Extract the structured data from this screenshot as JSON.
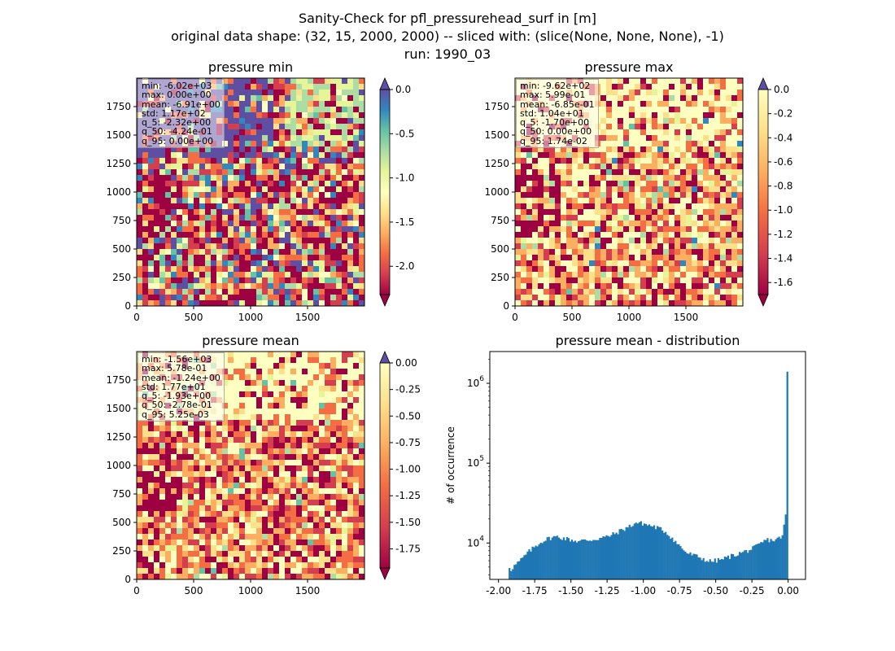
{
  "figure": {
    "title_lines": [
      "Sanity-Check for pfl_pressurehead_surf in [m]",
      "original data shape: (32, 15, 2000, 2000) -- sliced with: (slice(None, None, None), -1)",
      "run: 1990_03"
    ]
  },
  "chart_data": [
    {
      "type": "heatmap",
      "title": "pressure min",
      "xlim": [
        0,
        2000
      ],
      "ylim": [
        0,
        2000
      ],
      "xticks": [
        0,
        500,
        1000,
        1500
      ],
      "yticks": [
        0,
        250,
        500,
        750,
        1000,
        1250,
        1500,
        1750
      ],
      "colormap": "Spectral",
      "colorbar": {
        "range": [
          -2.32,
          0.0
        ],
        "ticks": [
          "0.0",
          "-0.5",
          "-1.0",
          "-1.5",
          "-2.0"
        ],
        "tick_values": [
          0.0,
          -0.5,
          -1.0,
          -1.5,
          -2.0
        ],
        "extend": "both"
      },
      "stats": [
        "min: -6.02e+03",
        "max: 0.00e+00",
        "mean: -6.91e+00",
        "std: 1.17e+02",
        "q_5: -2.32e+00",
        "q_50: -4.24e-01",
        "q_95: 0.00e+00"
      ]
    },
    {
      "type": "heatmap",
      "title": "pressure max",
      "xlim": [
        0,
        2000
      ],
      "ylim": [
        0,
        2000
      ],
      "xticks": [
        0,
        500,
        1000,
        1500
      ],
      "yticks": [
        0,
        250,
        500,
        750,
        1000,
        1250,
        1500,
        1750
      ],
      "colormap": "Spectral",
      "colorbar": {
        "range": [
          -1.7,
          0.0
        ],
        "ticks": [
          "0.0",
          "-0.2",
          "-0.4",
          "-0.6",
          "-0.8",
          "-1.0",
          "-1.2",
          "-1.4",
          "-1.6"
        ],
        "tick_values": [
          0.0,
          -0.2,
          -0.4,
          -0.6,
          -0.8,
          -1.0,
          -1.2,
          -1.4,
          -1.6
        ],
        "extend": "both"
      },
      "stats": [
        "min: -9.62e+02",
        "max: 5.99e-01",
        "mean: -6.85e-01",
        "std: 1.04e+01",
        "q_5: -1.70e+00",
        "q_50: 0.00e+00",
        "q_95: 1.74e-02"
      ]
    },
    {
      "type": "heatmap",
      "title": "pressure mean",
      "xlim": [
        0,
        2000
      ],
      "ylim": [
        0,
        2000
      ],
      "xticks": [
        0,
        500,
        1000,
        1500
      ],
      "yticks": [
        0,
        250,
        500,
        750,
        1000,
        1250,
        1500,
        1750
      ],
      "colormap": "Spectral",
      "colorbar": {
        "range": [
          -1.93,
          0.0
        ],
        "ticks": [
          "0.00",
          "-0.25",
          "-0.50",
          "-0.75",
          "-1.00",
          "-1.25",
          "-1.50",
          "-1.75"
        ],
        "tick_values": [
          0.0,
          -0.25,
          -0.5,
          -0.75,
          -1.0,
          -1.25,
          -1.5,
          -1.75
        ],
        "extend": "both"
      },
      "stats": [
        "min: -1.56e+03",
        "max: 5.78e-01",
        "mean: -1.24e+00",
        "std: 1.77e+01",
        "q_5: -1.93e+00",
        "q_50: -2.78e-01",
        "q_95: 5.25e-03"
      ]
    },
    {
      "type": "bar",
      "title": "pressure mean - distribution",
      "ylabel": "# of occurrence",
      "yscale": "log",
      "xlim": [
        -2.06,
        0.12
      ],
      "ylim": [
        3500,
        2500000
      ],
      "xticks": [
        "-2.00",
        "-1.75",
        "-1.50",
        "-1.25",
        "-1.00",
        "-0.75",
        "-0.50",
        "-0.25",
        "0.00"
      ],
      "xtick_values": [
        -2.0,
        -1.75,
        -1.5,
        -1.25,
        -1.0,
        -0.75,
        -0.5,
        -0.25,
        0.0
      ],
      "yticks": [
        {
          "value": 10000,
          "base": "10",
          "exp": "4"
        },
        {
          "value": 100000,
          "base": "10",
          "exp": "5"
        },
        {
          "value": 1000000,
          "base": "10",
          "exp": "6"
        }
      ],
      "bar_color": "#1f77b4",
      "bin_range": [
        -1.93,
        0.0
      ],
      "control_points": [
        [
          -1.93,
          5800
        ],
        [
          -1.92,
          4500
        ],
        [
          -1.9,
          5000
        ],
        [
          -1.85,
          6000
        ],
        [
          -1.8,
          7500
        ],
        [
          -1.75,
          9000
        ],
        [
          -1.7,
          10500
        ],
        [
          -1.65,
          11500
        ],
        [
          -1.6,
          12000
        ],
        [
          -1.55,
          11500
        ],
        [
          -1.5,
          11000
        ],
        [
          -1.45,
          10500
        ],
        [
          -1.4,
          10800
        ],
        [
          -1.35,
          11000
        ],
        [
          -1.3,
          11500
        ],
        [
          -1.25,
          12000
        ],
        [
          -1.2,
          13000
        ],
        [
          -1.15,
          14500
        ],
        [
          -1.1,
          16000
        ],
        [
          -1.05,
          18000
        ],
        [
          -1.0,
          17500
        ],
        [
          -0.95,
          16500
        ],
        [
          -0.9,
          15500
        ],
        [
          -0.85,
          14000
        ],
        [
          -0.8,
          11500
        ],
        [
          -0.77,
          10000
        ],
        [
          -0.73,
          8500
        ],
        [
          -0.7,
          7500
        ],
        [
          -0.65,
          7000
        ],
        [
          -0.6,
          6500
        ],
        [
          -0.55,
          5900
        ],
        [
          -0.5,
          6000
        ],
        [
          -0.45,
          6300
        ],
        [
          -0.4,
          6800
        ],
        [
          -0.35,
          7300
        ],
        [
          -0.3,
          7800
        ],
        [
          -0.25,
          8400
        ],
        [
          -0.2,
          9500
        ],
        [
          -0.15,
          11000
        ],
        [
          -0.1,
          10800
        ],
        [
          -0.06,
          11500
        ],
        [
          -0.04,
          12500
        ],
        [
          -0.03,
          15500
        ],
        [
          -0.02,
          20000
        ],
        [
          -0.01,
          30000
        ],
        [
          0.0,
          1400000
        ]
      ]
    }
  ]
}
